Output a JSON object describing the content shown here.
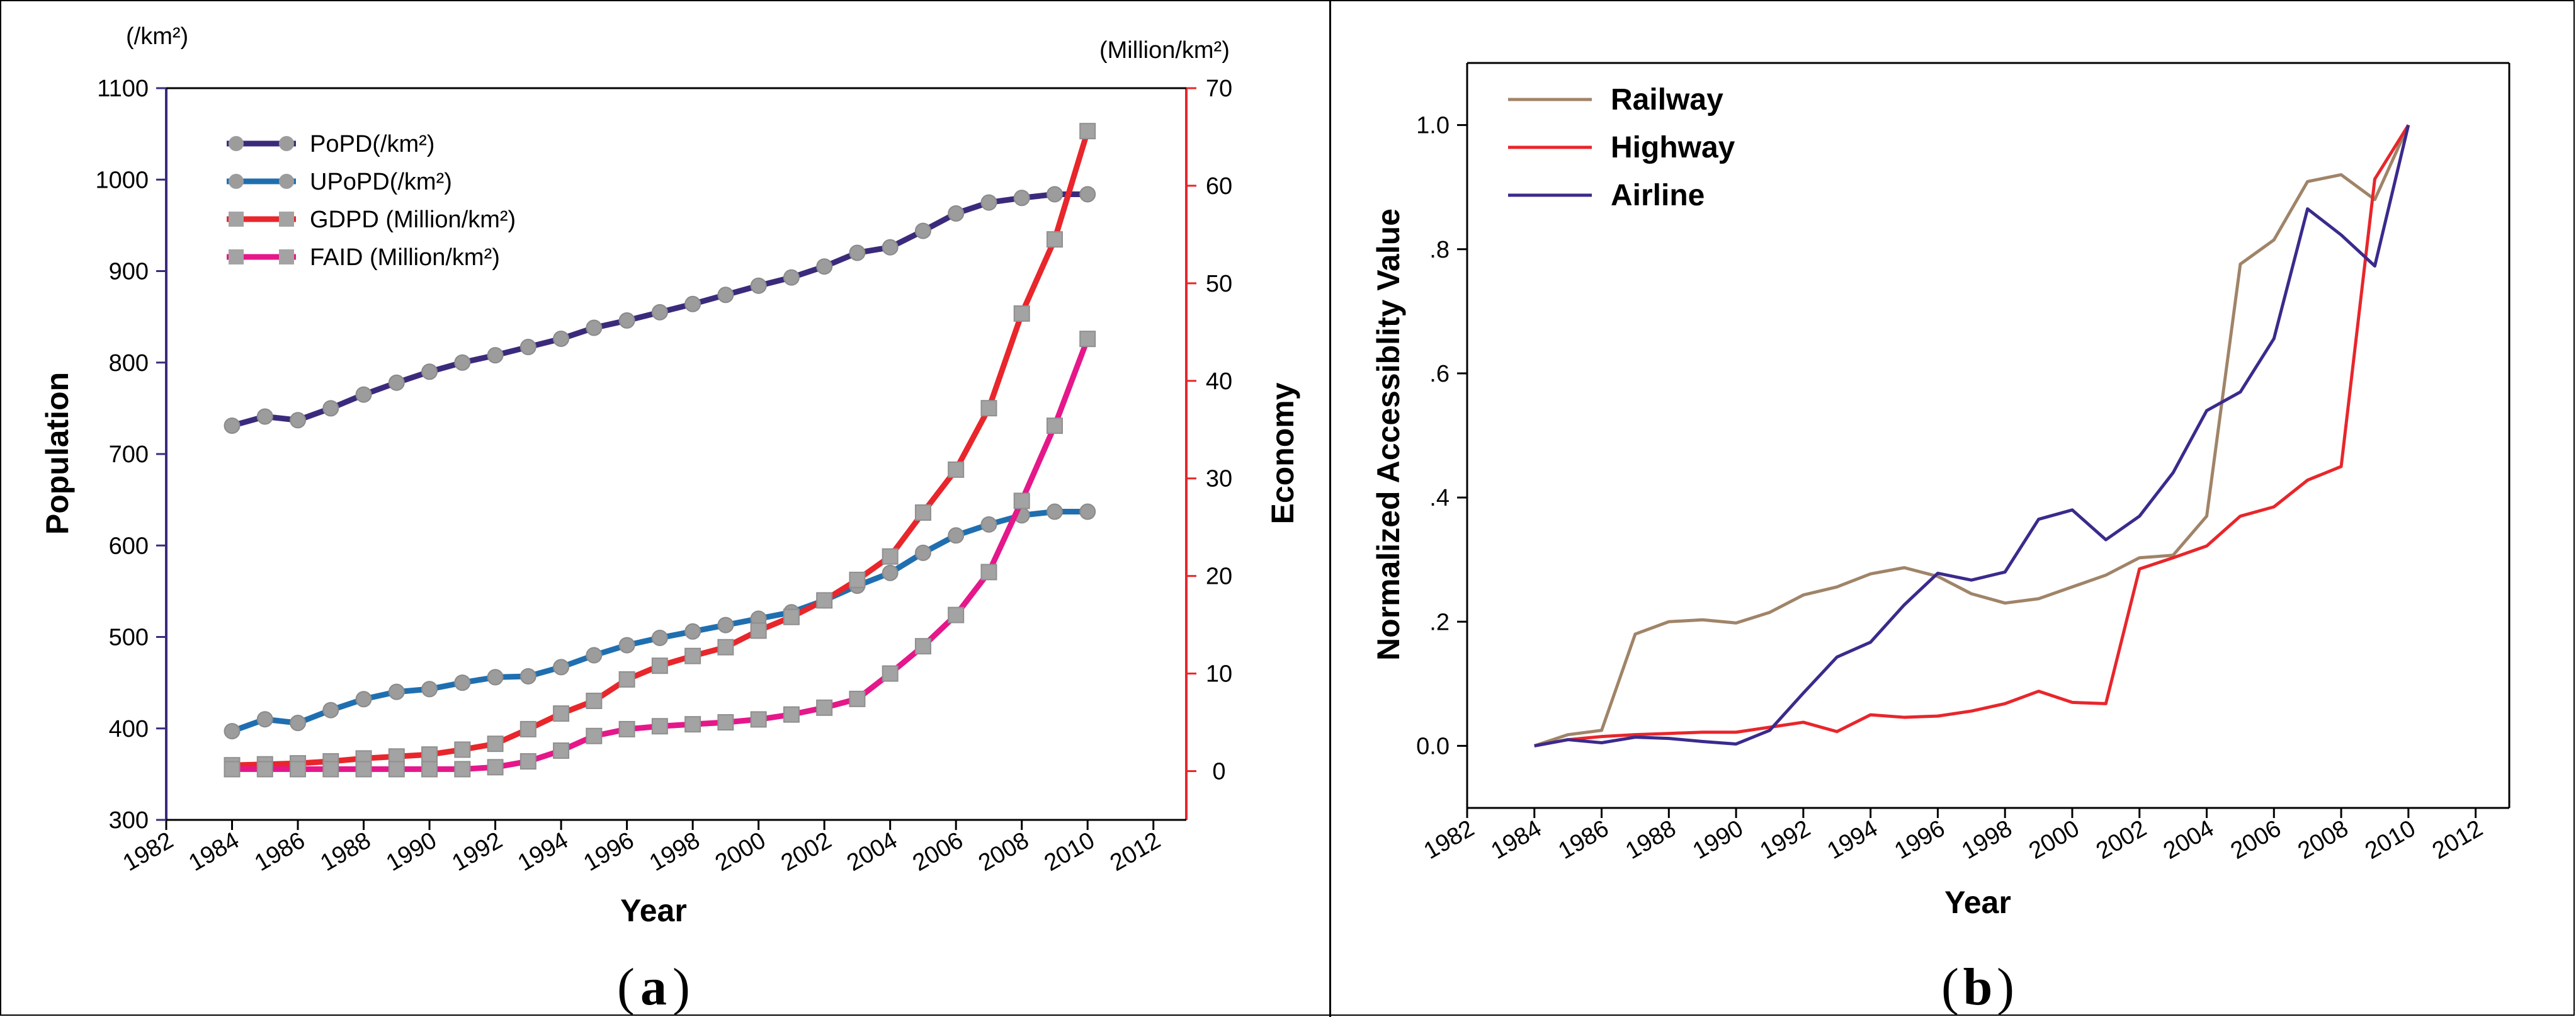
{
  "chart_data": [
    {
      "id": "a",
      "type": "line",
      "panel_label": "a",
      "xlabel": "Year",
      "x_ticks": [
        1982,
        1984,
        1986,
        1988,
        1990,
        1992,
        1994,
        1996,
        1998,
        2000,
        2002,
        2004,
        2006,
        2008,
        2010,
        2012
      ],
      "xlim": [
        1982,
        2013
      ],
      "left_axis": {
        "label": "Population",
        "unit": "(/km²)",
        "ylim": [
          300,
          1100
        ],
        "ticks": [
          300,
          400,
          500,
          600,
          700,
          800,
          900,
          1000,
          1100
        ]
      },
      "right_axis": {
        "label": "Economy",
        "unit": "(Million/km²)",
        "ylim": [
          -5,
          70
        ],
        "ticks": [
          0,
          10,
          20,
          30,
          40,
          50,
          60,
          70
        ]
      },
      "x": [
        1984,
        1985,
        1986,
        1987,
        1988,
        1989,
        1990,
        1991,
        1992,
        1993,
        1994,
        1995,
        1996,
        1997,
        1998,
        1999,
        2000,
        2001,
        2002,
        2003,
        2004,
        2005,
        2006,
        2007,
        2008,
        2009,
        2010
      ],
      "series": [
        {
          "name": "PoPD(/km²)",
          "axis": "left",
          "color": "#3b2a7c",
          "marker": "circle",
          "values": [
            731,
            741,
            737,
            750,
            765,
            778,
            790,
            800,
            808,
            817,
            826,
            838,
            846,
            855,
            864,
            874,
            884,
            893,
            905,
            920,
            926,
            944,
            963,
            975,
            980,
            984,
            984
          ]
        },
        {
          "name": "UPoPD(/km²)",
          "axis": "left",
          "color": "#1f6fb0",
          "marker": "circle",
          "values": [
            397,
            410,
            406,
            420,
            432,
            440,
            443,
            450,
            456,
            457,
            467,
            480,
            491,
            499,
            506,
            513,
            520,
            527,
            540,
            556,
            570,
            592,
            611,
            623,
            633,
            637,
            637
          ]
        },
        {
          "name": "GDPD (Million/km²)",
          "axis": "right",
          "color": "#e8262b",
          "marker": "square",
          "values": [
            0.6,
            0.7,
            0.8,
            1.0,
            1.3,
            1.5,
            1.7,
            2.2,
            2.8,
            4.3,
            5.9,
            7.2,
            9.4,
            10.8,
            11.8,
            12.7,
            14.4,
            15.8,
            17.5,
            19.6,
            22.0,
            26.5,
            30.9,
            37.2,
            46.9,
            54.5,
            65.6
          ]
        },
        {
          "name": "FAID (Million/km²)",
          "axis": "right",
          "color": "#e5178a",
          "marker": "square",
          "values": [
            0.2,
            0.2,
            0.2,
            0.2,
            0.2,
            0.2,
            0.2,
            0.2,
            0.4,
            1.0,
            2.1,
            3.6,
            4.3,
            4.6,
            4.8,
            5.0,
            5.3,
            5.8,
            6.5,
            7.4,
            10.0,
            12.8,
            16.0,
            20.4,
            27.7,
            35.4,
            44.3
          ]
        }
      ]
    },
    {
      "id": "b",
      "type": "line",
      "panel_label": "b",
      "xlabel": "Year",
      "ylabel": "Normalized Accessiblity Value",
      "x_ticks": [
        1982,
        1984,
        1986,
        1988,
        1990,
        1992,
        1994,
        1996,
        1998,
        2000,
        2002,
        2004,
        2006,
        2008,
        2010,
        2012
      ],
      "xlim": [
        1982,
        2013
      ],
      "ylim": [
        -0.1,
        1.1
      ],
      "y_ticks": [
        0.0,
        0.2,
        0.4,
        0.6,
        0.8,
        1.0
      ],
      "y_tick_labels": [
        "0.0",
        ".2",
        ".4",
        ".6",
        ".8",
        "1.0"
      ],
      "x": [
        1984,
        1985,
        1986,
        1987,
        1988,
        1989,
        1990,
        1991,
        1992,
        1993,
        1994,
        1995,
        1996,
        1997,
        1998,
        1999,
        2000,
        2001,
        2002,
        2003,
        2004,
        2005,
        2006,
        2007,
        2008,
        2009,
        2010
      ],
      "series": [
        {
          "name": "Railway",
          "color": "#a08468",
          "values": [
            0.0,
            0.018,
            0.025,
            0.18,
            0.2,
            0.203,
            0.198,
            0.215,
            0.243,
            0.256,
            0.277,
            0.287,
            0.273,
            0.245,
            0.23,
            0.237,
            0.256,
            0.275,
            0.303,
            0.307,
            0.37,
            0.776,
            0.815,
            0.909,
            0.92,
            0.88,
            1.0
          ]
        },
        {
          "name": "Highway",
          "color": "#e8262b",
          "values": [
            0.0,
            0.01,
            0.015,
            0.018,
            0.02,
            0.022,
            0.022,
            0.03,
            0.038,
            0.023,
            0.05,
            0.046,
            0.048,
            0.056,
            0.068,
            0.088,
            0.07,
            0.068,
            0.285,
            0.303,
            0.322,
            0.37,
            0.385,
            0.428,
            0.45,
            0.913,
            1.0
          ]
        },
        {
          "name": "Airline",
          "color": "#3b2a8c",
          "values": [
            0.0,
            0.01,
            0.005,
            0.014,
            0.012,
            0.007,
            0.003,
            0.025,
            0.085,
            0.143,
            0.167,
            0.227,
            0.278,
            0.267,
            0.28,
            0.365,
            0.38,
            0.332,
            0.37,
            0.44,
            0.54,
            0.57,
            0.656,
            0.865,
            0.823,
            0.773,
            1.0
          ]
        }
      ]
    }
  ]
}
